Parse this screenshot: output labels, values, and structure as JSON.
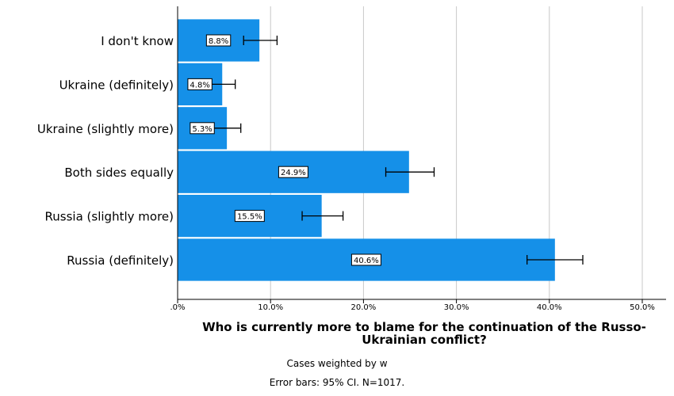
{
  "chart_data": {
    "type": "bar",
    "orientation": "horizontal",
    "categories": [
      "I don't know",
      "Ukraine (definitely)",
      "Ukraine (slightly more)",
      "Both sides equally",
      "Russia (slightly more)",
      "Russia (definitely)"
    ],
    "values": [
      8.8,
      4.8,
      5.3,
      24.9,
      15.5,
      40.6
    ],
    "value_labels": [
      "8.8%",
      "4.8%",
      "5.3%",
      "24.9%",
      "15.5%",
      "40.6%"
    ],
    "error_bars": [
      [
        7.1,
        10.7
      ],
      [
        3.5,
        6.2
      ],
      [
        3.9,
        6.8
      ],
      [
        22.4,
        27.6
      ],
      [
        13.4,
        17.8
      ],
      [
        37.6,
        43.6
      ]
    ],
    "xlim": [
      0,
      50
    ],
    "xticks": [
      ".0%",
      "10.0%",
      "20.0%",
      "30.0%",
      "40.0%",
      "50.0%"
    ],
    "xlabel_lines": [
      "Who is currently more to blame for the continuation of the Russo-",
      "Ukrainian conflict?"
    ],
    "ylabel": "",
    "grid": "vertical",
    "bar_color": "#1590e8",
    "notes": [
      "Cases weighted by w",
      "Error bars: 95% CI. N=1017."
    ]
  }
}
